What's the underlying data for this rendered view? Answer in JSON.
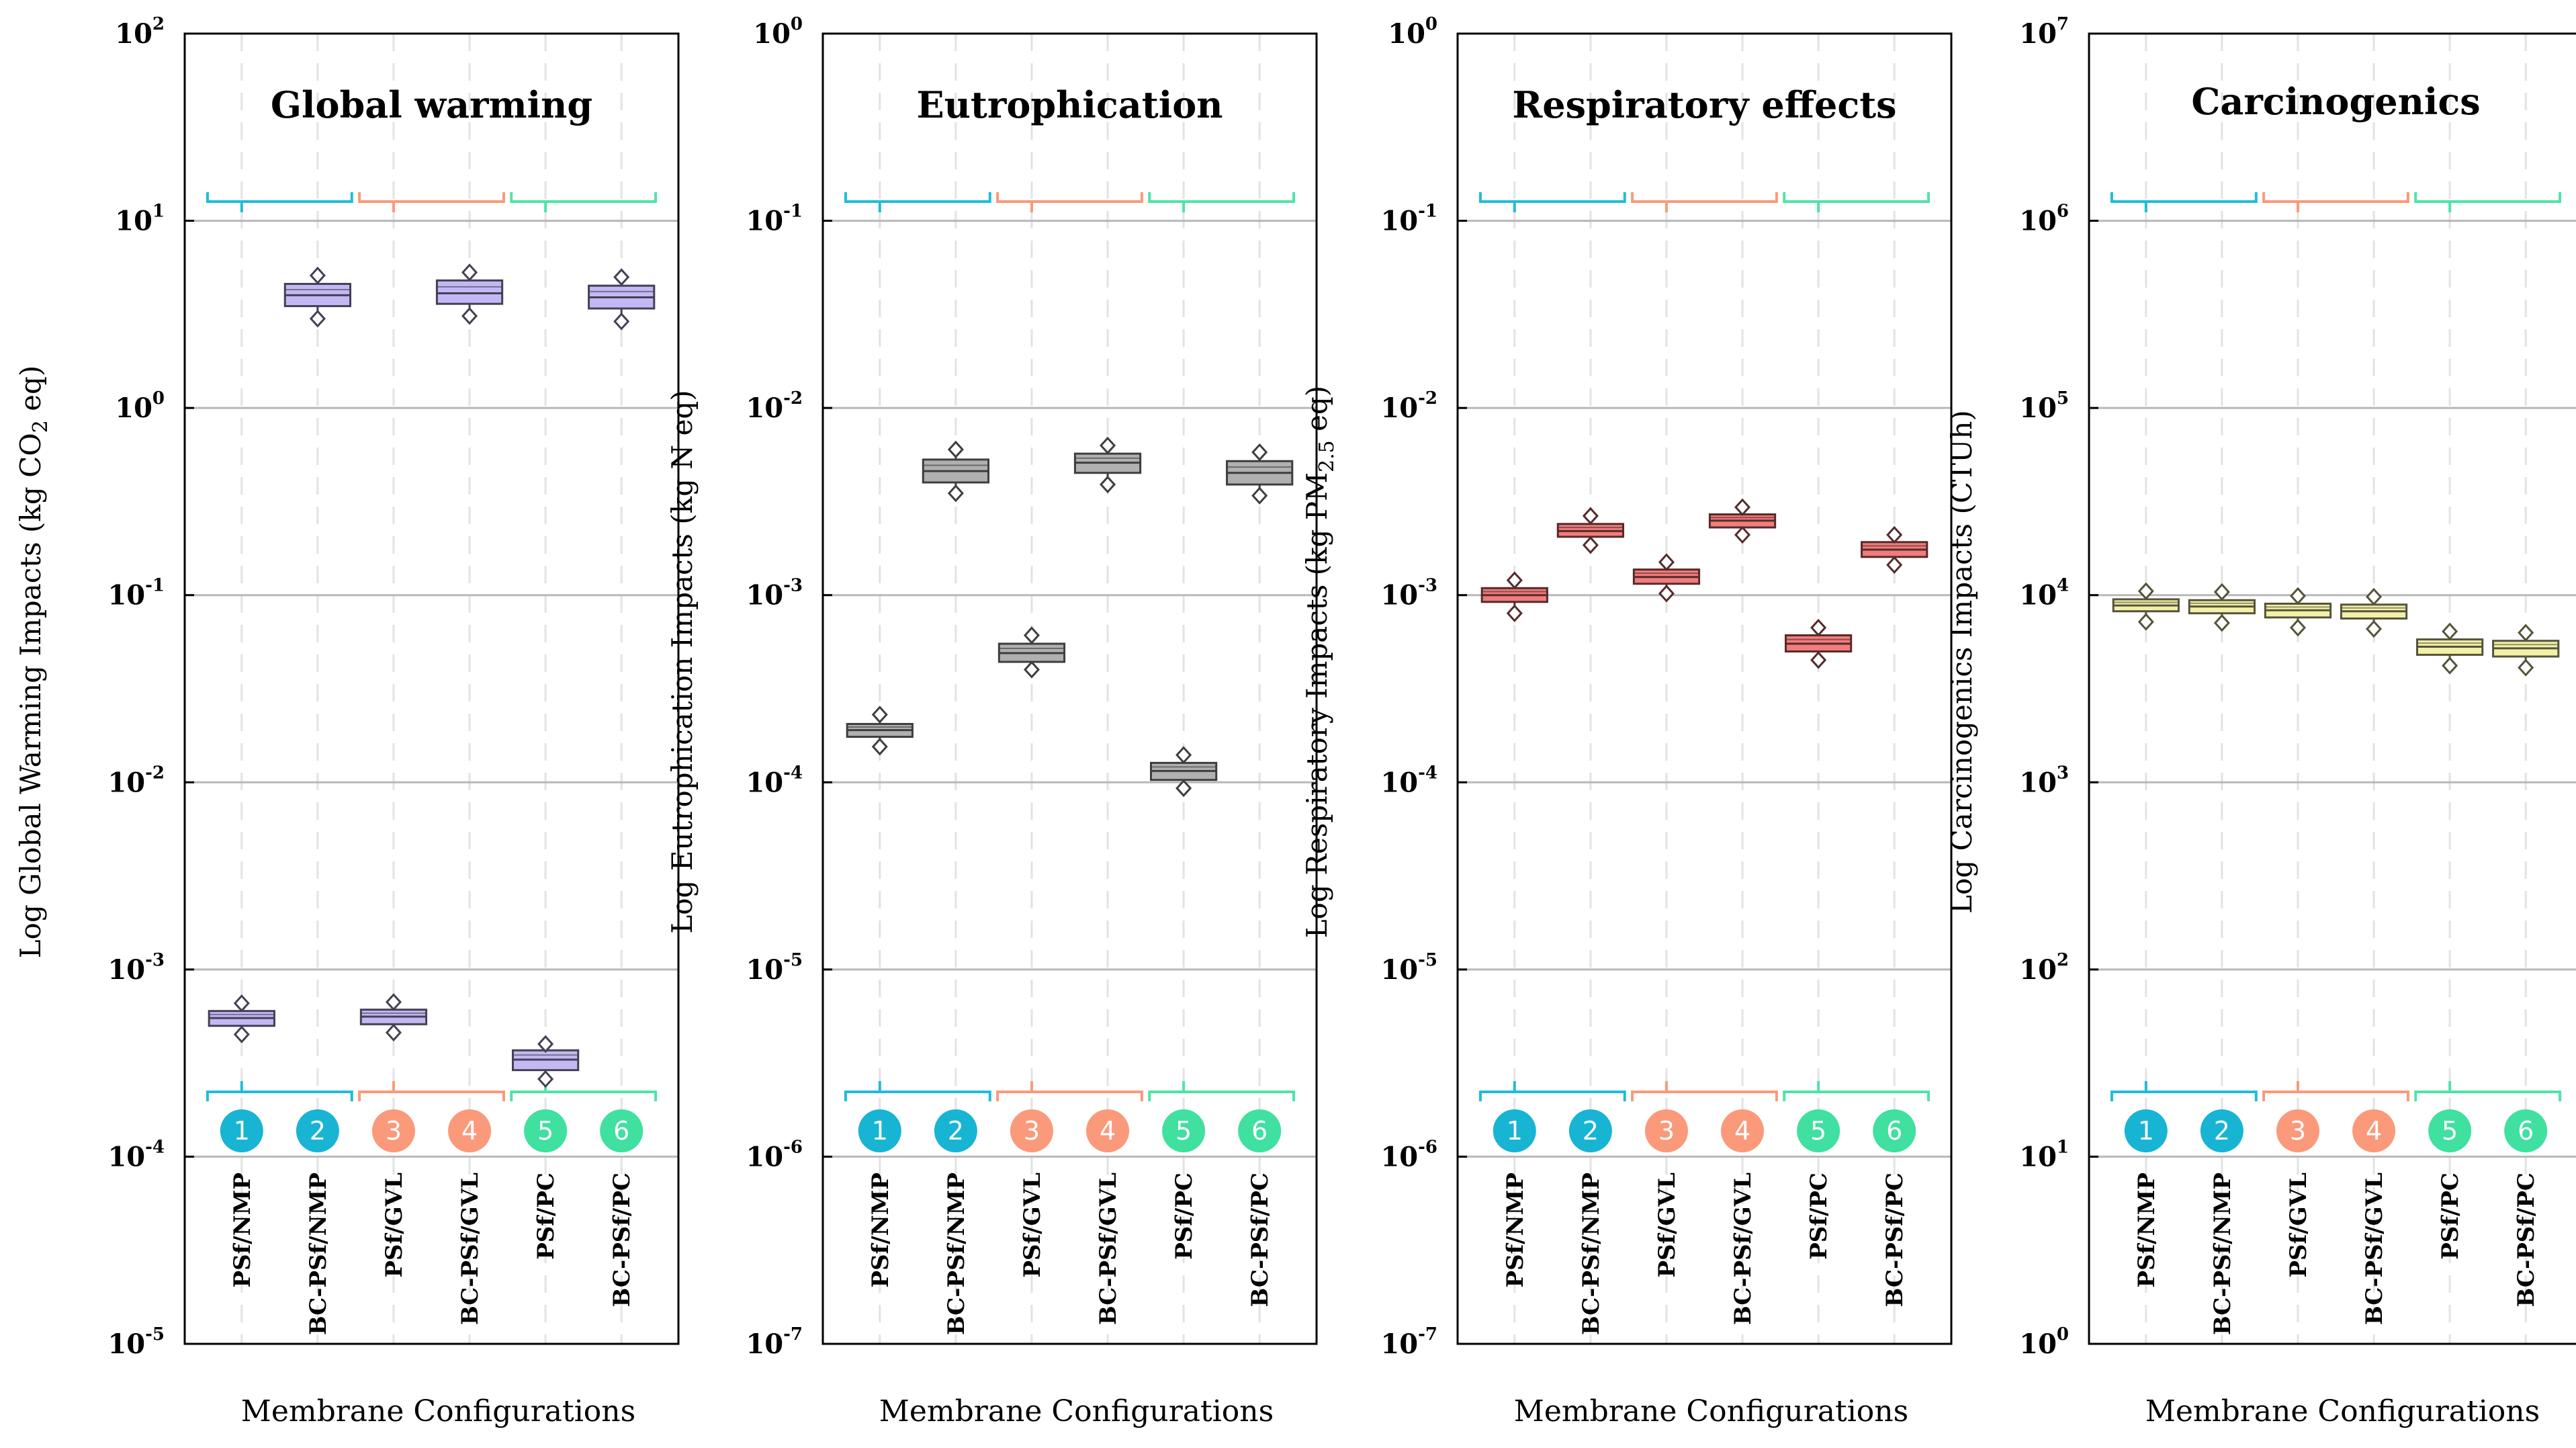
{
  "shared": {
    "xlabel": "Membrane Configurations",
    "categories": [
      "PSf/NMP",
      "BC-PSf/NMP",
      "PSf/GVL",
      "BC-PSf/GVL",
      "PSf/PC",
      "BC-PSf/PC"
    ],
    "badges": [
      "1",
      "2",
      "3",
      "4",
      "5",
      "6"
    ],
    "group_colors": [
      "#20bcd8",
      "#fa9a7a",
      "#4fe3a8"
    ],
    "badge_colors": [
      "#18b4d4",
      "#18b4d4",
      "#fa9a7a",
      "#fa9a7a",
      "#3fe0a0",
      "#3fe0a0"
    ]
  },
  "chart_data": [
    {
      "type": "box",
      "title": "Global warming",
      "ylabel_parts": [
        "Log Global Warming Impacts (kg CO",
        "2",
        " eq)"
      ],
      "yscale": "log",
      "ylim_exp": [
        -5,
        2
      ],
      "grid": true,
      "box_color": "#c4b8f4",
      "series": [
        {
          "category": "PSf/NMP",
          "median": 0.00055,
          "q1": 0.0005,
          "q3": 0.0006,
          "min": 0.00045,
          "max": 0.00066
        },
        {
          "category": "BC-PSf/NMP",
          "median": 4.0,
          "q1": 3.5,
          "q3": 4.6,
          "min": 3.0,
          "max": 5.1
        },
        {
          "category": "PSf/GVL",
          "median": 0.00056,
          "q1": 0.00051,
          "q3": 0.00061,
          "min": 0.00046,
          "max": 0.00067
        },
        {
          "category": "BC-PSf/GVL",
          "median": 4.1,
          "q1": 3.6,
          "q3": 4.8,
          "min": 3.1,
          "max": 5.3
        },
        {
          "category": "PSf/PC",
          "median": 0.00033,
          "q1": 0.00029,
          "q3": 0.00037,
          "min": 0.00026,
          "max": 0.0004
        },
        {
          "category": "BC-PSf/PC",
          "median": 3.9,
          "q1": 3.4,
          "q3": 4.5,
          "min": 2.9,
          "max": 5.0
        }
      ]
    },
    {
      "type": "box",
      "title": "Eutrophication",
      "ylabel_parts": [
        "Log Eutrophication Impacts (kg N eq)"
      ],
      "yscale": "log",
      "ylim_exp": [
        -7,
        0
      ],
      "grid": true,
      "box_color": "#b0b0b0",
      "series": [
        {
          "category": "PSf/NMP",
          "median": 0.00019,
          "q1": 0.000175,
          "q3": 0.000205,
          "min": 0.000155,
          "max": 0.00023
        },
        {
          "category": "BC-PSf/NMP",
          "median": 0.0046,
          "q1": 0.004,
          "q3": 0.0053,
          "min": 0.0035,
          "max": 0.006
        },
        {
          "category": "PSf/GVL",
          "median": 0.00049,
          "q1": 0.00044,
          "q3": 0.00055,
          "min": 0.0004,
          "max": 0.00061
        },
        {
          "category": "BC-PSf/GVL",
          "median": 0.0051,
          "q1": 0.0045,
          "q3": 0.0057,
          "min": 0.0039,
          "max": 0.0063
        },
        {
          "category": "PSf/PC",
          "median": 0.000115,
          "q1": 0.000103,
          "q3": 0.000127,
          "min": 9.3e-05,
          "max": 0.00014
        },
        {
          "category": "BC-PSf/PC",
          "median": 0.0045,
          "q1": 0.0039,
          "q3": 0.0052,
          "min": 0.0034,
          "max": 0.0058
        }
      ]
    },
    {
      "type": "box",
      "title": "Respiratory effects",
      "ylabel_parts": [
        "Log Respiratory Impacts (kg PM",
        "2.5",
        " eq)"
      ],
      "yscale": "log",
      "ylim_exp": [
        -7,
        0
      ],
      "grid": true,
      "box_color": "#f27c7c",
      "series": [
        {
          "category": "PSf/NMP",
          "median": 0.001,
          "q1": 0.00092,
          "q3": 0.00109,
          "min": 0.0008,
          "max": 0.0012
        },
        {
          "category": "BC-PSf/NMP",
          "median": 0.0022,
          "q1": 0.00205,
          "q3": 0.0024,
          "min": 0.00185,
          "max": 0.00265
        },
        {
          "category": "PSf/GVL",
          "median": 0.00125,
          "q1": 0.00115,
          "q3": 0.00137,
          "min": 0.00102,
          "max": 0.0015
        },
        {
          "category": "BC-PSf/GVL",
          "median": 0.0025,
          "q1": 0.0023,
          "q3": 0.0027,
          "min": 0.0021,
          "max": 0.00295
        },
        {
          "category": "PSf/PC",
          "median": 0.00055,
          "q1": 0.0005,
          "q3": 0.00061,
          "min": 0.00045,
          "max": 0.00067
        },
        {
          "category": "BC-PSf/PC",
          "median": 0.00175,
          "q1": 0.0016,
          "q3": 0.00192,
          "min": 0.00145,
          "max": 0.0021
        }
      ]
    },
    {
      "type": "box",
      "title": "Carcinogenics",
      "ylabel_parts": [
        "Log Carcinogenics Impacts (CTUh)"
      ],
      "yscale": "log",
      "ylim_exp": [
        0,
        7
      ],
      "grid": true,
      "box_color": "#f3f0a8",
      "series": [
        {
          "category": "PSf/NMP",
          "median": 8800,
          "q1": 8200,
          "q3": 9500,
          "min": 7200,
          "max": 10500
        },
        {
          "category": "BC-PSf/NMP",
          "median": 8700,
          "q1": 8000,
          "q3": 9400,
          "min": 7100,
          "max": 10400
        },
        {
          "category": "PSf/GVL",
          "median": 8300,
          "q1": 7600,
          "q3": 9000,
          "min": 6700,
          "max": 9900
        },
        {
          "category": "BC-PSf/GVL",
          "median": 8200,
          "q1": 7500,
          "q3": 8900,
          "min": 6600,
          "max": 9800
        },
        {
          "category": "PSf/PC",
          "median": 5300,
          "q1": 4800,
          "q3": 5800,
          "min": 4200,
          "max": 6400
        },
        {
          "category": "BC-PSf/PC",
          "median": 5200,
          "q1": 4700,
          "q3": 5700,
          "min": 4100,
          "max": 6300
        }
      ]
    }
  ]
}
